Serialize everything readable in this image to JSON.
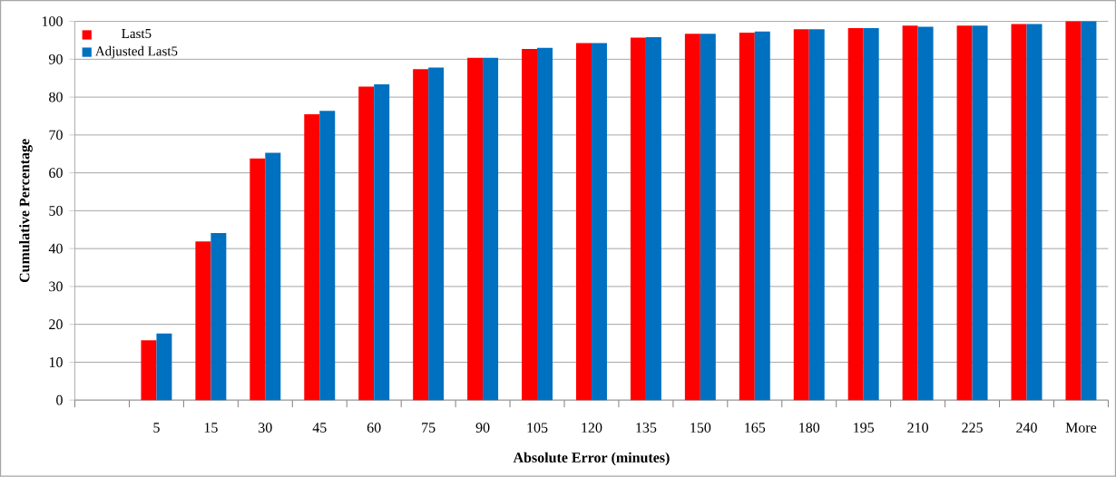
{
  "chart_data": {
    "type": "bar",
    "xlabel": "Absolute Error (minutes)",
    "ylabel": "Cumulative Percentage",
    "categories": [
      null,
      "5",
      "15",
      "30",
      "45",
      "60",
      "75",
      "90",
      "105",
      "120",
      "135",
      "150",
      "165",
      "180",
      "195",
      "210",
      "225",
      "240",
      "More"
    ],
    "series": [
      {
        "name": "Last5",
        "color": "#ff0000",
        "values": [
          null,
          15.8,
          41.9,
          63.8,
          75.5,
          82.8,
          87.4,
          90.4,
          92.7,
          94.3,
          95.7,
          96.7,
          97.0,
          97.9,
          98.2,
          98.9,
          98.9,
          99.3,
          100
        ]
      },
      {
        "name": "Adjusted Last5",
        "color": "#0070c0",
        "values": [
          null,
          17.6,
          44.1,
          65.3,
          76.4,
          83.4,
          87.8,
          90.4,
          93.0,
          94.3,
          95.8,
          96.7,
          97.3,
          97.9,
          98.2,
          98.6,
          98.9,
          99.3,
          100
        ]
      }
    ],
    "ylim": [
      0,
      100
    ],
    "yticks": [
      0,
      10,
      20,
      30,
      40,
      50,
      60,
      70,
      80,
      90,
      100
    ],
    "grid": "y",
    "legend": "top left"
  }
}
